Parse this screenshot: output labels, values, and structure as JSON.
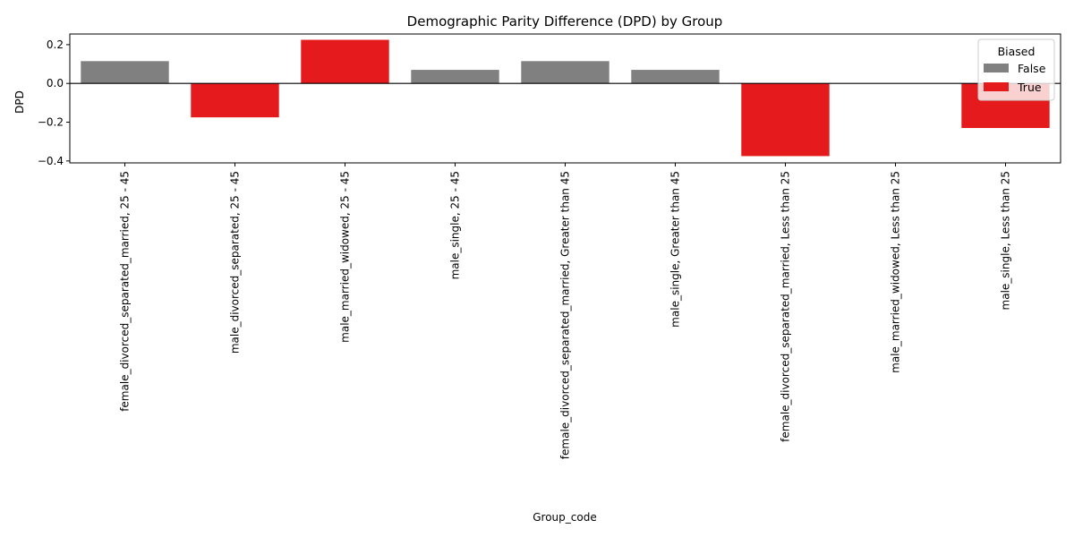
{
  "chart_data": {
    "type": "bar",
    "title": "Demographic Parity Difference (DPD) by Group",
    "xlabel": "Group_code",
    "ylabel": "DPD",
    "ylim": [
      -0.41,
      0.255
    ],
    "yticks": [
      -0.4,
      -0.2,
      0.0,
      0.2
    ],
    "ytick_labels": [
      "−0.4",
      "−0.2",
      "0.0",
      "0.2"
    ],
    "grid": false,
    "zero_line": true,
    "categories": [
      "female_divorced_separated_married, 25 - 45",
      "male_divorced_separated, 25 - 45",
      "male_married_widowed, 25 - 45",
      "male_single, 25 - 45",
      "female_divorced_separated_married, Greater than 45",
      "male_single, Greater than 45",
      "female_divorced_separated_married, Less than 25",
      "male_married_widowed, Less than 25",
      "male_single, Less than 25"
    ],
    "values": [
      0.115,
      -0.175,
      0.225,
      0.07,
      0.115,
      0.07,
      -0.375,
      0.0,
      -0.23
    ],
    "biased": [
      false,
      true,
      true,
      false,
      false,
      false,
      true,
      false,
      true
    ],
    "legend": {
      "title": "Biased",
      "placement": "top-right",
      "entries": [
        {
          "label": "False",
          "color": "#808080"
        },
        {
          "label": "True",
          "color": "#e41a1c"
        }
      ]
    }
  }
}
